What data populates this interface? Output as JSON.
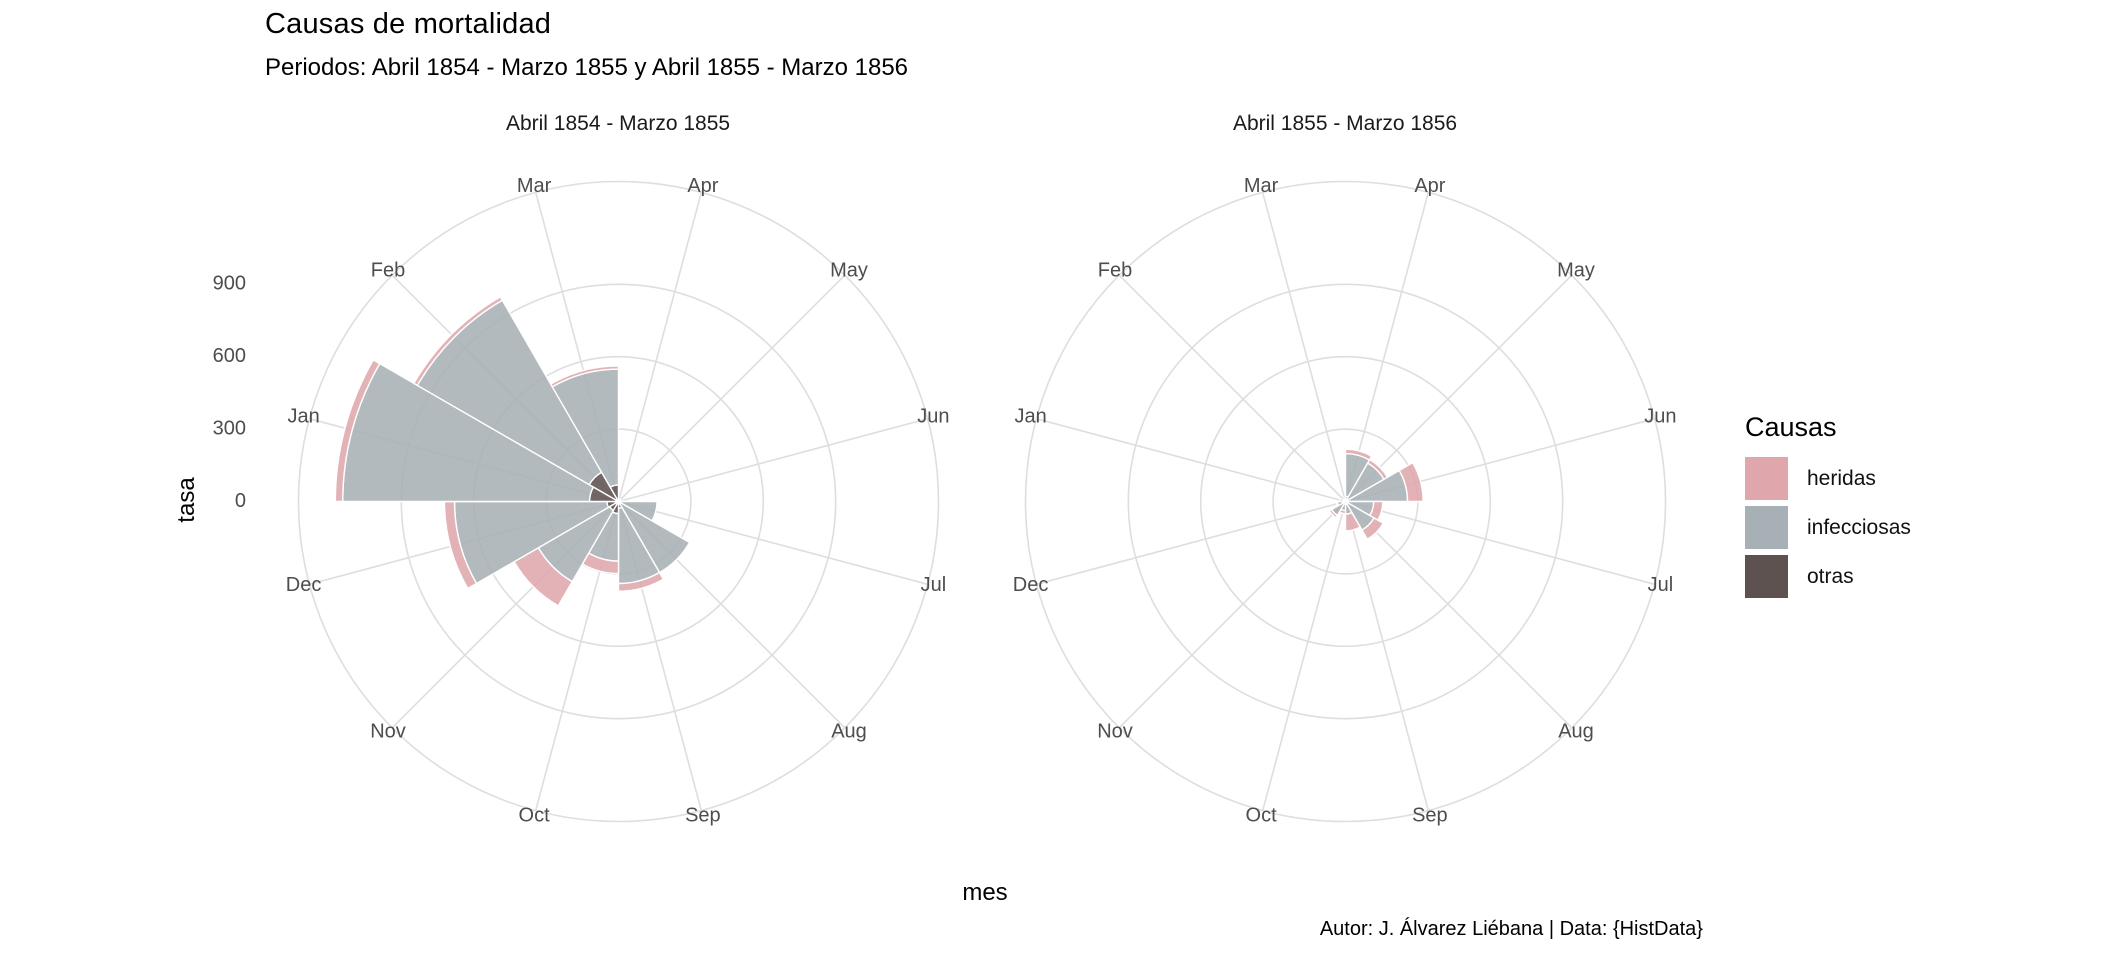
{
  "header": {
    "title": "Causas de mortalidad",
    "subtitle": "Periodos: Abril 1854 - Marzo 1855 y Abril 1855 - Marzo 1856"
  },
  "axis": {
    "y_label": "tasa",
    "x_label": "mes",
    "y_tick_labels": [
      "0",
      "300",
      "600",
      "900"
    ]
  },
  "caption_text": "Autor: J. Álvarez Liébana | Data: {HistData}",
  "legend": {
    "title": "Causas",
    "items": [
      {
        "label": "heridas",
        "color": "#DFA7AC"
      },
      {
        "label": "infecciosas",
        "color": "#A7B1B5"
      },
      {
        "label": "otras",
        "color": "#5E5250"
      }
    ]
  },
  "style_colors": {
    "grid": "#DEDEDE",
    "axis_text": "#4D4D4D",
    "background": "#FFFFFF"
  },
  "chart_data": {
    "type": "polar_stacked_bar_rose",
    "title": "Causas de mortalidad",
    "subtitle": "Periodos: Abril 1854 - Marzo 1855 y Abril 1855 - Marzo 1856",
    "direction": "clockwise_from_top",
    "sector_width_deg": 30,
    "first_sector_start_deg": 0,
    "months": [
      "Apr",
      "May",
      "Jun",
      "Jul",
      "Aug",
      "Sep",
      "Oct",
      "Nov",
      "Dec",
      "Jan",
      "Feb",
      "Mar"
    ],
    "stack_order_inner_to_outer": [
      "otras",
      "infecciosas",
      "heridas"
    ],
    "colors": {
      "heridas": "#DFA7AC",
      "infecciosas": "#A7B1B5",
      "otras": "#5E5250"
    },
    "r_axis": {
      "label": "tasa",
      "ticks": [
        0,
        300,
        600,
        900
      ],
      "grid_circle_values": [
        300,
        600,
        900
      ],
      "outer_ring_value": 1326
    },
    "theta_axis_label": "mes",
    "legend_title": "Causas",
    "facets": [
      {
        "title": "Abril 1854 - Marzo 1855",
        "series": {
          "heridas": [
            0.0,
            0.0,
            0.0,
            0.0,
            0.4,
            32.1,
            51.7,
            115.8,
            41.7,
            30.7,
            16.3,
            12.8
          ],
          "infecciosas": [
            1.4,
            6.2,
            4.7,
            150.0,
            328.5,
            312.2,
            197.0,
            340.6,
            631.5,
            1022.8,
            822.8,
            480.3
          ],
          "otras": [
            7.0,
            4.6,
            2.5,
            9.6,
            11.9,
            27.7,
            50.1,
            42.8,
            48.0,
            120.0,
            140.1,
            68.6
          ]
        }
      },
      {
        "title": "Abril 1855 - Marzo 1856",
        "series": {
          "heridas": [
            17.9,
            16.6,
            64.5,
            37.7,
            44.1,
            69.4,
            13.6,
            10.5,
            5.0,
            0.5,
            0.0,
            0.0
          ],
          "infecciosas": [
            177.5,
            171.8,
            247.6,
            107.5,
            129.9,
            47.5,
            32.8,
            56.4,
            25.3,
            11.4,
            6.6,
            3.9
          ],
          "otras": [
            21.2,
            12.5,
            9.6,
            9.3,
            6.7,
            5.0,
            4.6,
            10.1,
            7.8,
            13.0,
            5.2,
            9.1
          ]
        }
      }
    ]
  }
}
